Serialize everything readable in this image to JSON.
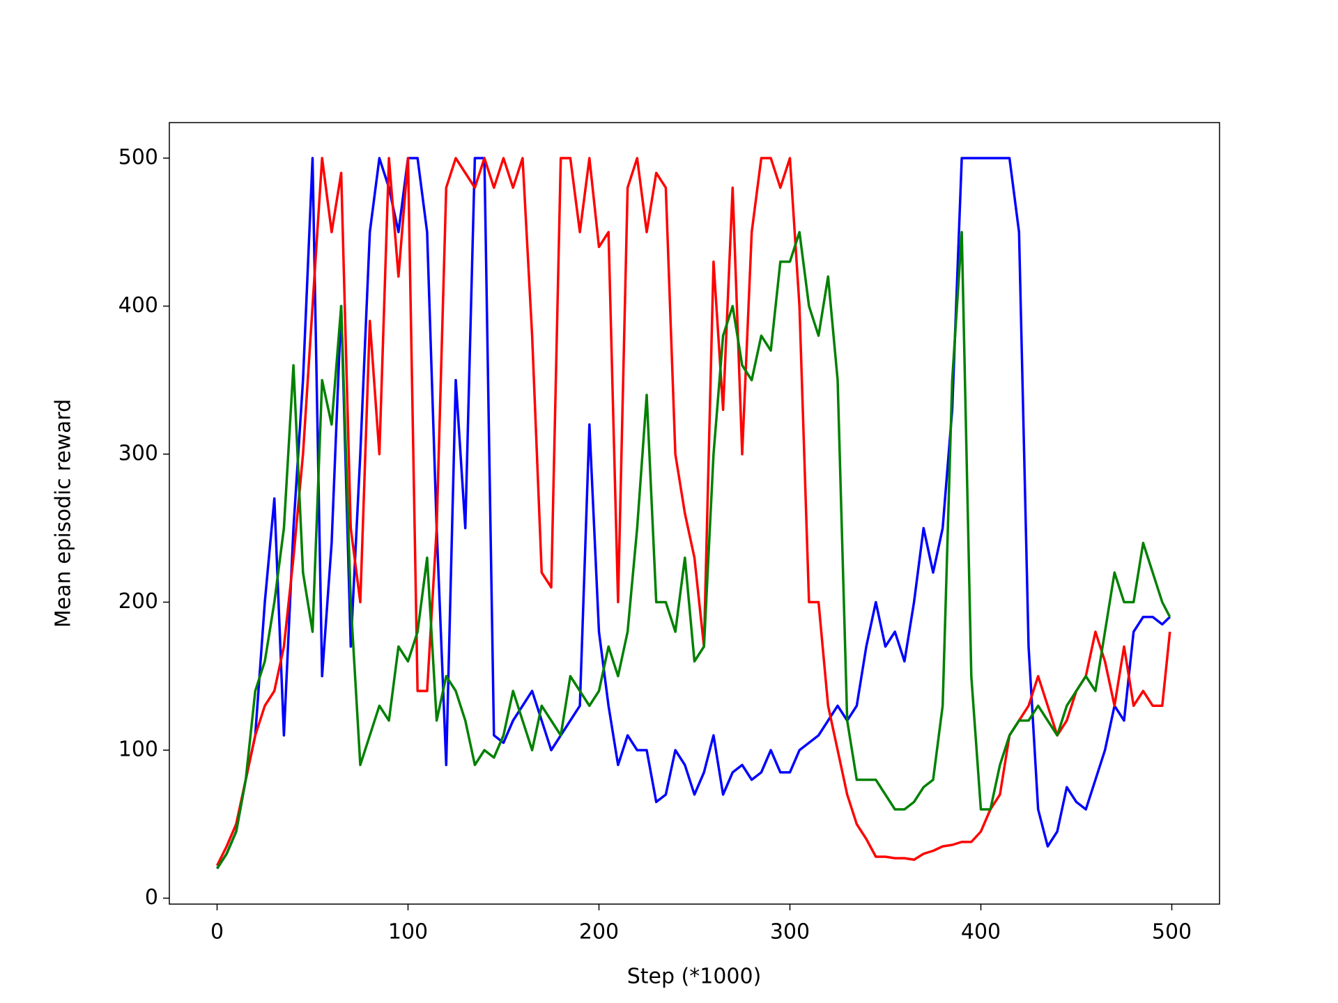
{
  "chart_data": {
    "type": "line",
    "xlabel": "Step (*1000)",
    "ylabel": "Mean episodic reward",
    "x": [
      0,
      5,
      10,
      15,
      20,
      25,
      30,
      35,
      40,
      45,
      50,
      55,
      60,
      65,
      70,
      75,
      80,
      85,
      90,
      95,
      100,
      105,
      110,
      115,
      120,
      125,
      130,
      135,
      140,
      145,
      150,
      155,
      160,
      165,
      170,
      175,
      180,
      185,
      190,
      195,
      200,
      205,
      210,
      215,
      220,
      225,
      230,
      235,
      240,
      245,
      250,
      255,
      260,
      265,
      270,
      275,
      280,
      285,
      290,
      295,
      300,
      305,
      310,
      315,
      320,
      325,
      330,
      335,
      340,
      345,
      350,
      355,
      360,
      365,
      370,
      375,
      380,
      385,
      390,
      395,
      400,
      405,
      410,
      415,
      420,
      425,
      430,
      435,
      440,
      445,
      450,
      455,
      460,
      465,
      470,
      475,
      480,
      485,
      490,
      495,
      499
    ],
    "series": [
      {
        "color": "#0000ff",
        "values": [
          20,
          30,
          45,
          80,
          110,
          200,
          270,
          110,
          250,
          350,
          500,
          150,
          240,
          400,
          170,
          300,
          450,
          500,
          480,
          450,
          500,
          500,
          450,
          250,
          90,
          350,
          250,
          500,
          500,
          110,
          105,
          120,
          130,
          140,
          120,
          100,
          110,
          120,
          130,
          320,
          180,
          130,
          90,
          110,
          100,
          100,
          65,
          70,
          100,
          90,
          70,
          85,
          110,
          70,
          85,
          90,
          80,
          85,
          100,
          85,
          85,
          100,
          105,
          110,
          120,
          130,
          120,
          130,
          170,
          200,
          170,
          180,
          160,
          200,
          250,
          220,
          250,
          330,
          500,
          500,
          500,
          500,
          500,
          500,
          450,
          170,
          60,
          35,
          45,
          75,
          65,
          60,
          80,
          100,
          130,
          120,
          180,
          190,
          190,
          185,
          190
        ]
      },
      {
        "color": "#ff0000",
        "values": [
          22,
          35,
          50,
          80,
          110,
          130,
          140,
          170,
          230,
          300,
          400,
          500,
          450,
          490,
          250,
          200,
          390,
          300,
          500,
          420,
          500,
          140,
          140,
          250,
          480,
          500,
          490,
          480,
          500,
          480,
          500,
          480,
          500,
          380,
          220,
          210,
          500,
          500,
          450,
          500,
          440,
          450,
          200,
          480,
          500,
          450,
          490,
          480,
          300,
          260,
          230,
          170,
          430,
          330,
          480,
          300,
          450,
          500,
          500,
          480,
          500,
          400,
          200,
          200,
          130,
          100,
          70,
          50,
          40,
          28,
          28,
          27,
          27,
          26,
          30,
          32,
          35,
          36,
          38,
          38,
          45,
          60,
          70,
          110,
          120,
          130,
          150,
          130,
          110,
          120,
          140,
          150,
          180,
          160,
          130,
          170,
          130,
          140,
          130,
          130,
          180
        ]
      },
      {
        "color": "#008000",
        "values": [
          20,
          30,
          45,
          80,
          140,
          160,
          200,
          250,
          360,
          220,
          180,
          350,
          320,
          400,
          200,
          90,
          110,
          130,
          120,
          170,
          160,
          180,
          230,
          120,
          150,
          140,
          120,
          90,
          100,
          95,
          110,
          140,
          120,
          100,
          130,
          120,
          110,
          150,
          140,
          130,
          140,
          170,
          150,
          180,
          250,
          340,
          200,
          200,
          180,
          230,
          160,
          170,
          300,
          380,
          400,
          360,
          350,
          380,
          370,
          430,
          430,
          450,
          400,
          380,
          420,
          350,
          120,
          80,
          80,
          80,
          70,
          60,
          60,
          65,
          75,
          80,
          130,
          350,
          450,
          150,
          60,
          60,
          90,
          110,
          120,
          120,
          130,
          120,
          110,
          130,
          140,
          150,
          140,
          180,
          220,
          200,
          200,
          240,
          220,
          200,
          190
        ]
      }
    ],
    "xlim": [
      -25,
      525
    ],
    "ylim": [
      -4,
      524
    ],
    "xticks": [
      0,
      100,
      200,
      300,
      400,
      500
    ],
    "yticks": [
      0,
      100,
      200,
      300,
      400,
      500
    ]
  }
}
